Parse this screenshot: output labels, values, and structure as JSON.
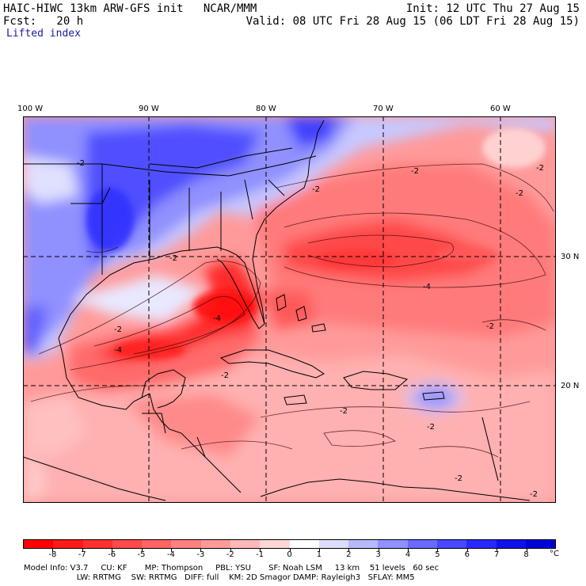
{
  "header": {
    "line1_left": "HAIC-HIWC 13km ARW-GFS init   NCAR/MMM",
    "line1_right": "Init: 12 UTC Thu 27 Aug 15",
    "line2_left": "Fcst:   20 h",
    "line2_right": "Valid: 08 UTC Fri 28 Aug 15 (06 LDT Fri 28 Aug 15)",
    "field": "Lifted index"
  },
  "axes": {
    "lon_labels": [
      "100 W",
      "90 W",
      "80 W",
      "70 W",
      "60 W"
    ],
    "lat_labels": [
      "30 N",
      "20 N"
    ]
  },
  "colorbar": {
    "ticks": [
      "-8",
      "-7",
      "-6",
      "-5",
      "-4",
      "-3",
      "-2",
      "-1",
      "0",
      "1",
      "2",
      "3",
      "4",
      "5",
      "6",
      "7",
      "8"
    ],
    "unit": "°C",
    "colors": [
      "#ff0000",
      "#ff1a1a",
      "#ff3030",
      "#ff4a4a",
      "#ff6464",
      "#ff8080",
      "#ff9a9a",
      "#ffb8b8",
      "#ffd6d6",
      "#ffffff",
      "#dcdcff",
      "#b8b8ff",
      "#9090ff",
      "#6a6aff",
      "#4848ff",
      "#2828ff",
      "#1010f0",
      "#0000d8"
    ]
  },
  "footer": {
    "line1": "Model Info: V3.7     CU: KF       MP: Thompson     PBL: YSU       SF: Noah LSM     13 km    51 levels   60 sec",
    "line2": "                     LW: RRTMG    SW: RRTMG   DIFF: full    KM: 2D Smagor DAMP: Rayleigh3   SFLAY: MM5"
  },
  "contour_labels": [
    "-2",
    "-2",
    "-2",
    "-2",
    "-2",
    "-2",
    "-2",
    "-2",
    "-4",
    "-4",
    "-4",
    "-2",
    "-2",
    "-2",
    "-2",
    "-2"
  ]
}
